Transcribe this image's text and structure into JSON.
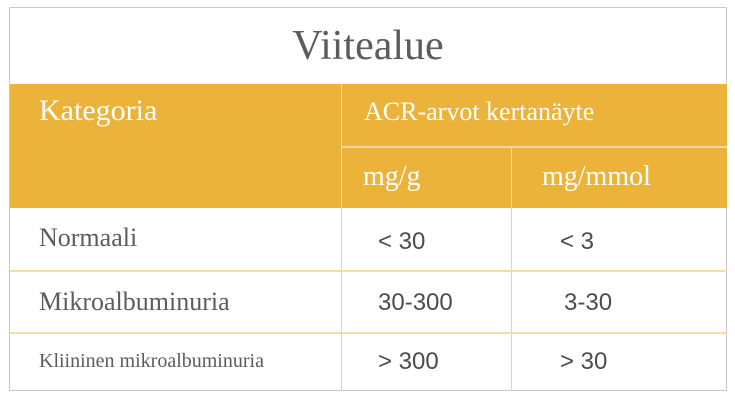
{
  "title": "Viitealue",
  "colors": {
    "header_bg": "#ecb33a",
    "grid": "#f5d27f",
    "text": "#5a5c60"
  },
  "table": {
    "headers": {
      "category": "Kategoria",
      "group": "ACR-arvot kertanäyte",
      "unit1": "mg/g",
      "unit2": "mg/mmol"
    },
    "rows": [
      {
        "category": "Normaali",
        "mg_g": "< 30",
        "mg_mmol": "< 3"
      },
      {
        "category": "Mikroalbuminuria",
        "mg_g": "30-300",
        "mg_mmol": "3-30"
      },
      {
        "category": "Kliininen mikroalbuminuria",
        "mg_g": "> 300",
        "mg_mmol": "> 30"
      }
    ]
  }
}
